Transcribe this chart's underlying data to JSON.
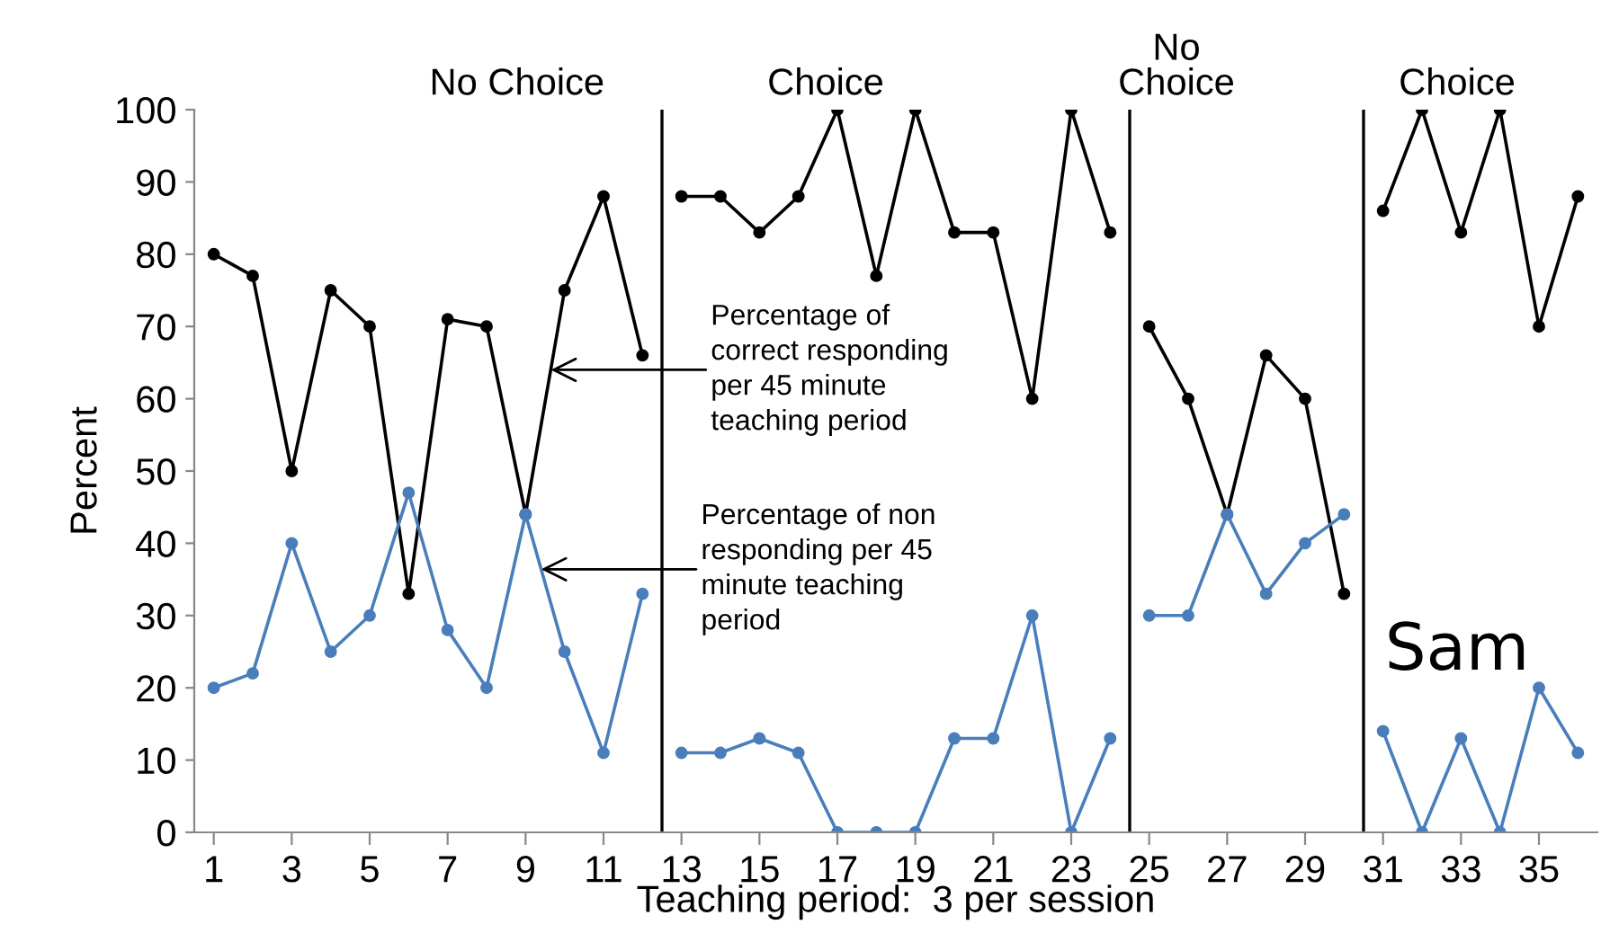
{
  "chart_data": {
    "type": "line",
    "xlabel": "Teaching period:  3 per session",
    "ylabel": "Percent",
    "xlim": [
      0.5,
      36.5
    ],
    "ylim": [
      0,
      100
    ],
    "xticks": [
      1,
      3,
      5,
      7,
      9,
      11,
      13,
      15,
      17,
      19,
      21,
      23,
      25,
      27,
      29,
      31,
      33,
      35
    ],
    "yticks": [
      0,
      10,
      20,
      30,
      40,
      50,
      60,
      70,
      80,
      90,
      100
    ],
    "grid": false,
    "marker": "circle",
    "line_style": "solid",
    "series": [
      {
        "color": "#000000",
        "x": [
          1,
          2,
          3,
          4,
          5,
          6,
          7,
          8,
          9,
          10,
          11,
          12
        ],
        "values": [
          80,
          77,
          50,
          75,
          70,
          33,
          71,
          70,
          44,
          75,
          88,
          66
        ]
      },
      {
        "color": "#000000",
        "x": [
          13,
          14,
          15,
          16,
          17,
          18,
          19,
          20,
          21,
          22,
          23,
          24
        ],
        "values": [
          88,
          88,
          83,
          88,
          100,
          77,
          100,
          83,
          83,
          60,
          100,
          83
        ]
      },
      {
        "color": "#000000",
        "x": [
          25,
          26,
          27,
          28,
          29,
          30
        ],
        "values": [
          70,
          60,
          44,
          66,
          60,
          33
        ]
      },
      {
        "color": "#000000",
        "x": [
          31,
          32,
          33,
          34,
          35,
          36
        ],
        "values": [
          86,
          100,
          83,
          100,
          70,
          88
        ]
      },
      {
        "color": "#4a7ebb",
        "x": [
          1,
          2,
          3,
          4,
          5,
          6,
          7,
          8,
          9,
          10,
          11,
          12
        ],
        "values": [
          20,
          22,
          40,
          25,
          30,
          47,
          28,
          20,
          44,
          25,
          11,
          33
        ]
      },
      {
        "color": "#4a7ebb",
        "x": [
          13,
          14,
          15,
          16,
          17,
          18,
          19,
          20,
          21,
          22,
          23,
          24
        ],
        "values": [
          11,
          11,
          13,
          11,
          0,
          0,
          0,
          13,
          13,
          30,
          0,
          13
        ]
      },
      {
        "color": "#4a7ebb",
        "x": [
          25,
          26,
          27,
          28,
          29,
          30
        ],
        "values": [
          30,
          30,
          44,
          33,
          40,
          44
        ]
      },
      {
        "color": "#4a7ebb",
        "x": [
          31,
          32,
          33,
          34,
          35,
          36
        ],
        "values": [
          14,
          0,
          13,
          0,
          20,
          11
        ]
      }
    ],
    "ref_lines": [
      {
        "axis": "x",
        "value": 12.5,
        "color": "#000000"
      },
      {
        "axis": "x",
        "value": 24.5,
        "color": "#000000"
      },
      {
        "axis": "x",
        "value": 30.5,
        "color": "#000000"
      }
    ],
    "annotations": [
      "No Choice",
      "Choice",
      "No\nChoice",
      "Choice",
      "Sam",
      {
        "text": "Percentage of\ncorrect responding\nper 45 minute\nteaching period",
        "x": 9.65,
        "y": 64
      },
      {
        "text": "Percentage of non\nresponding per 45\nminute teaching\nperiod",
        "x": 9.4,
        "y": 36.4
      }
    ]
  }
}
